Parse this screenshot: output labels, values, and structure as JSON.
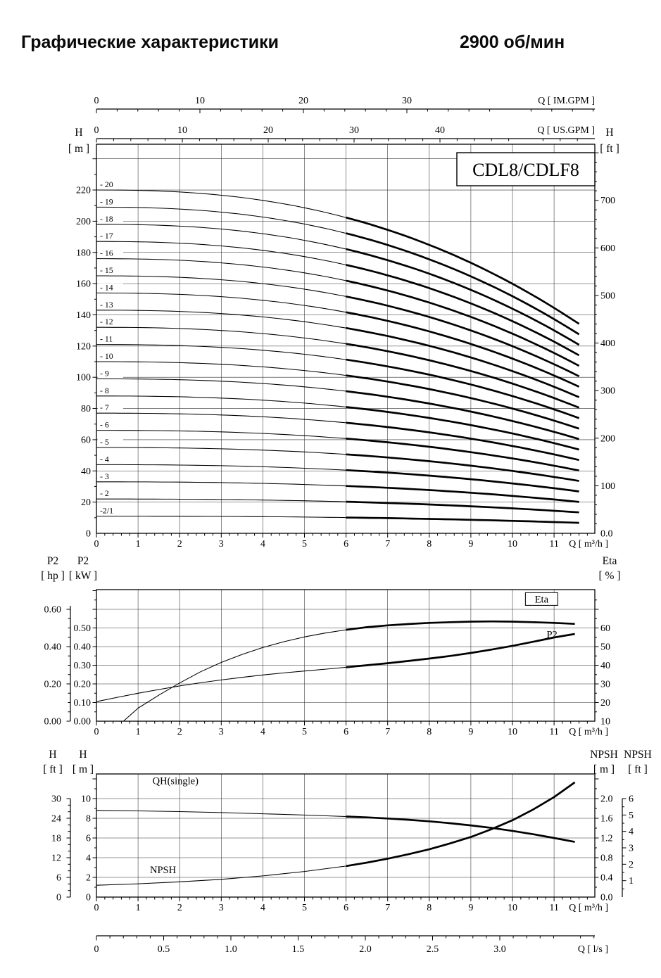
{
  "header": {
    "title": "Графические характеристики",
    "rpm": "2900 об/мин"
  },
  "chart_data": [
    {
      "type": "line",
      "name": "head-curves",
      "model_box": "CDL8/CDLF8",
      "xlim_m3h": [
        0,
        12
      ],
      "axes": {
        "im_gpm": {
          "title": "Q [ IM.GPM ]",
          "ticks": [
            0,
            10,
            20,
            30
          ]
        },
        "us_gpm": {
          "title": "Q [ US.GPM ]",
          "ticks": [
            0,
            10,
            20,
            30,
            40
          ]
        },
        "q_m3h": {
          "title": "Q [ m³/h ]",
          "ticks": [
            0,
            1,
            2,
            3,
            4,
            5,
            6,
            7,
            8,
            9,
            10,
            11
          ]
        },
        "h_m": {
          "header": [
            "H",
            "[ m ]"
          ],
          "ticks": [
            0,
            20,
            40,
            60,
            80,
            100,
            120,
            140,
            160,
            180,
            200,
            220
          ]
        },
        "h_ft": {
          "header": [
            "H",
            "[ ft ]"
          ],
          "ticks": [
            "0.0",
            "100",
            "200",
            "300",
            "400",
            "500",
            "600",
            "700"
          ]
        }
      },
      "stages": [
        {
          "label": "- 20",
          "head_m": 220
        },
        {
          "label": "- 19",
          "head_m": 209
        },
        {
          "label": "- 18",
          "head_m": 198
        },
        {
          "label": "- 17",
          "head_m": 187
        },
        {
          "label": "- 16",
          "head_m": 176
        },
        {
          "label": "- 15",
          "head_m": 165
        },
        {
          "label": "- 14",
          "head_m": 154
        },
        {
          "label": "- 13",
          "head_m": 143
        },
        {
          "label": "- 12",
          "head_m": 132
        },
        {
          "label": "- 11",
          "head_m": 121
        },
        {
          "label": "- 10",
          "head_m": 110
        },
        {
          "label": "- 9",
          "head_m": 99
        },
        {
          "label": "- 8",
          "head_m": 88
        },
        {
          "label": "- 7",
          "head_m": 77
        },
        {
          "label": "- 6",
          "head_m": 66
        },
        {
          "label": "- 5",
          "head_m": 55
        },
        {
          "label": "- 4",
          "head_m": 44
        },
        {
          "label": "- 3",
          "head_m": 33
        },
        {
          "label": "- 2",
          "head_m": 22
        },
        {
          "label": "-2/1",
          "head_m": 11
        }
      ],
      "curve_model": {
        "q_end_m3h": 11.6,
        "head_drop_ratio": 0.39,
        "exponent": 2.4,
        "bold_from_m3h": 6
      }
    },
    {
      "type": "line",
      "name": "power-efficiency",
      "axes": {
        "q_m3h": {
          "title": "Q [ m³/h ]",
          "ticks": [
            0,
            1,
            2,
            3,
            4,
            5,
            6,
            7,
            8,
            9,
            10,
            11
          ]
        },
        "p2_hp": {
          "header": [
            "P2",
            "[ hp ]"
          ],
          "ticks": [
            "0.00",
            "0.20",
            "0.40",
            "0.60"
          ]
        },
        "p2_kw": {
          "header": [
            "P2",
            "[ kW ]"
          ],
          "ticks": [
            "0.00",
            "0.10",
            "0.20",
            "0.30",
            "0.40",
            "0.50"
          ]
        },
        "eta_pct": {
          "header": [
            "Eta",
            "[ % ]"
          ],
          "ticks": [
            10,
            20,
            30,
            40,
            50,
            60
          ]
        }
      },
      "series": [
        {
          "name": "Eta",
          "label": "Eta",
          "axis": "eta_pct",
          "boxed": true,
          "label_at": [
            10.7,
            74
          ],
          "label_anchor": "middle",
          "points": [
            [
              0.65,
              10
            ],
            [
              1,
              17
            ],
            [
              1.5,
              24
            ],
            [
              2,
              30.5
            ],
            [
              2.5,
              36.5
            ],
            [
              3,
              41.5
            ],
            [
              3.5,
              45.8
            ],
            [
              4,
              49.5
            ],
            [
              4.5,
              52.6
            ],
            [
              5,
              55.2
            ],
            [
              5.5,
              57.3
            ],
            [
              6,
              59
            ],
            [
              6.5,
              60.4
            ],
            [
              7,
              61.4
            ],
            [
              7.5,
              62.1
            ],
            [
              8,
              62.7
            ],
            [
              8.5,
              63.1
            ],
            [
              9,
              63.4
            ],
            [
              9.5,
              63.5
            ],
            [
              10,
              63.4
            ],
            [
              10.5,
              63.1
            ],
            [
              11,
              62.7
            ],
            [
              11.5,
              62.2
            ]
          ]
        },
        {
          "name": "P2",
          "label": "P2",
          "axis": "p2_kw",
          "boxed": false,
          "label_at": [
            10.82,
            0.451
          ],
          "label_anchor": "start",
          "points": [
            [
              0,
              0.105
            ],
            [
              0.5,
              0.128
            ],
            [
              1,
              0.15
            ],
            [
              1.5,
              0.17
            ],
            [
              2,
              0.189
            ],
            [
              2.5,
              0.206
            ],
            [
              3,
              0.221
            ],
            [
              3.5,
              0.235
            ],
            [
              4,
              0.248
            ],
            [
              4.5,
              0.259
            ],
            [
              5,
              0.269
            ],
            [
              5.5,
              0.279
            ],
            [
              6,
              0.289
            ],
            [
              6.5,
              0.3
            ],
            [
              7,
              0.311
            ],
            [
              7.5,
              0.323
            ],
            [
              8,
              0.336
            ],
            [
              8.5,
              0.35
            ],
            [
              9,
              0.366
            ],
            [
              9.5,
              0.384
            ],
            [
              10,
              0.404
            ],
            [
              10.5,
              0.426
            ],
            [
              11,
              0.449
            ],
            [
              11.5,
              0.468
            ]
          ]
        }
      ]
    },
    {
      "type": "line",
      "name": "single-stage-head-npsh",
      "axes": {
        "q_m3h": {
          "title": "Q [ m³/h ]",
          "ticks": [
            0,
            1,
            2,
            3,
            4,
            5,
            6,
            7,
            8,
            9,
            10,
            11
          ]
        },
        "q_ls": {
          "title": "Q [ l/s ]",
          "ticks": [
            "0",
            "0.5",
            "1.0",
            "1.5",
            "2.0",
            "2.5",
            "3.0"
          ]
        },
        "h_ft": {
          "header": [
            "H",
            "[ ft ]"
          ],
          "ticks": [
            0,
            6,
            12,
            18,
            24,
            30
          ]
        },
        "h_m": {
          "header": [
            "H",
            "[ m ]"
          ],
          "ticks": [
            0,
            2,
            4,
            6,
            8,
            10
          ]
        },
        "npsh_m": {
          "header": [
            "NPSH",
            "[ m ]"
          ],
          "ticks": [
            "0.0",
            "0.4",
            "0.8",
            "1.2",
            "1.6",
            "2.0"
          ]
        },
        "npsh_ft": {
          "header": [
            "NPSH",
            "[ ft ]"
          ],
          "ticks": [
            1,
            2,
            3,
            4,
            5,
            6
          ]
        }
      },
      "series": [
        {
          "name": "QH(single)",
          "label": "QH(single)",
          "axis": "h_m",
          "boxed": false,
          "label_at": [
            1.9,
            11.55
          ],
          "label_anchor": "middle",
          "points": [
            [
              0,
              8.8
            ],
            [
              1,
              8.75
            ],
            [
              2,
              8.68
            ],
            [
              3,
              8.58
            ],
            [
              4,
              8.46
            ],
            [
              5,
              8.33
            ],
            [
              6,
              8.18
            ],
            [
              6.5,
              8.09
            ],
            [
              7,
              7.98
            ],
            [
              7.5,
              7.85
            ],
            [
              8,
              7.69
            ],
            [
              8.5,
              7.5
            ],
            [
              9,
              7.28
            ],
            [
              9.5,
              7.02
            ],
            [
              10,
              6.72
            ],
            [
              10.5,
              6.38
            ],
            [
              11,
              6.0
            ],
            [
              11.5,
              5.6
            ]
          ]
        },
        {
          "name": "NPSH",
          "label": "NPSH",
          "axis": "npsh_m",
          "boxed": false,
          "label_at": [
            1.6,
            0.5
          ],
          "label_anchor": "middle",
          "points": [
            [
              0,
              0.24
            ],
            [
              1,
              0.27
            ],
            [
              2,
              0.31
            ],
            [
              3,
              0.36
            ],
            [
              4,
              0.43
            ],
            [
              5,
              0.52
            ],
            [
              6,
              0.63
            ],
            [
              6.5,
              0.7
            ],
            [
              7,
              0.78
            ],
            [
              7.5,
              0.87
            ],
            [
              8,
              0.97
            ],
            [
              8.5,
              1.09
            ],
            [
              9,
              1.22
            ],
            [
              9.5,
              1.38
            ],
            [
              10,
              1.56
            ],
            [
              10.5,
              1.78
            ],
            [
              11,
              2.03
            ],
            [
              11.5,
              2.33
            ]
          ]
        }
      ]
    }
  ]
}
